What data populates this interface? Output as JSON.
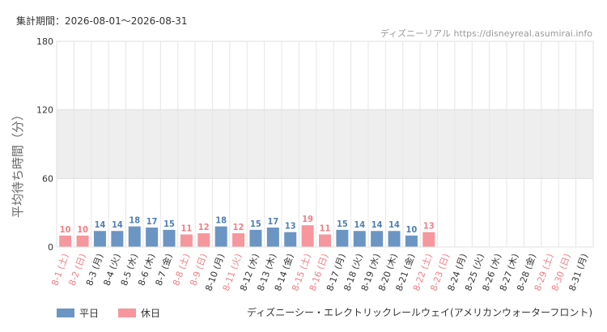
{
  "header": {
    "period": "集計期間：2026-08-01～2026-08-31",
    "credit": "ディズニーリアル https://disneyreal.asumirai.info"
  },
  "footer": {
    "attraction": "ディズニーシー・エレクトリックレールウェイ(アメリカンウォーターフロント)"
  },
  "colors": {
    "weekday": "#6b95c3",
    "holiday": "#f5979c",
    "weekday_text": "#4f7fb3",
    "holiday_text": "#f27d84",
    "band": "#eeeeee"
  },
  "chart_data": {
    "type": "bar",
    "ylabel": "平均待ち時間（分）",
    "ylim": [
      0,
      180
    ],
    "yticks": [
      0,
      60,
      120,
      180
    ],
    "shaded_band": [
      60,
      120
    ],
    "grid": true,
    "legend_position": "bottom-left",
    "legend": [
      {
        "name": "平日",
        "kind": "weekday"
      },
      {
        "name": "休日",
        "kind": "holiday"
      }
    ],
    "categories": [
      "8-1 (土)",
      "8-2 (日)",
      "8-3 (月)",
      "8-4 (火)",
      "8-5 (水)",
      "8-6 (木)",
      "8-7 (金)",
      "8-8 (土)",
      "8-9 (日)",
      "8-10 (月)",
      "8-11 (火)",
      "8-12 (水)",
      "8-13 (木)",
      "8-14 (金)",
      "8-15 (土)",
      "8-16 (日)",
      "8-17 (月)",
      "8-18 (火)",
      "8-19 (水)",
      "8-20 (木)",
      "8-21 (金)",
      "8-22 (土)",
      "8-23 (日)",
      "8-24 (月)",
      "8-25 (火)",
      "8-26 (水)",
      "8-27 (木)",
      "8-28 (金)",
      "8-29 (土)",
      "8-30 (日)",
      "8-31 (月)"
    ],
    "holiday": [
      true,
      true,
      false,
      false,
      false,
      false,
      false,
      true,
      true,
      false,
      true,
      false,
      false,
      false,
      true,
      true,
      false,
      false,
      false,
      false,
      false,
      true,
      true,
      false,
      false,
      false,
      false,
      false,
      true,
      true,
      false
    ],
    "values": [
      10,
      10,
      14,
      14,
      18,
      17,
      15,
      11,
      12,
      18,
      12,
      15,
      17,
      13,
      19,
      11,
      15,
      14,
      14,
      14,
      10,
      13,
      null,
      null,
      null,
      null,
      null,
      null,
      null,
      null,
      null
    ]
  }
}
